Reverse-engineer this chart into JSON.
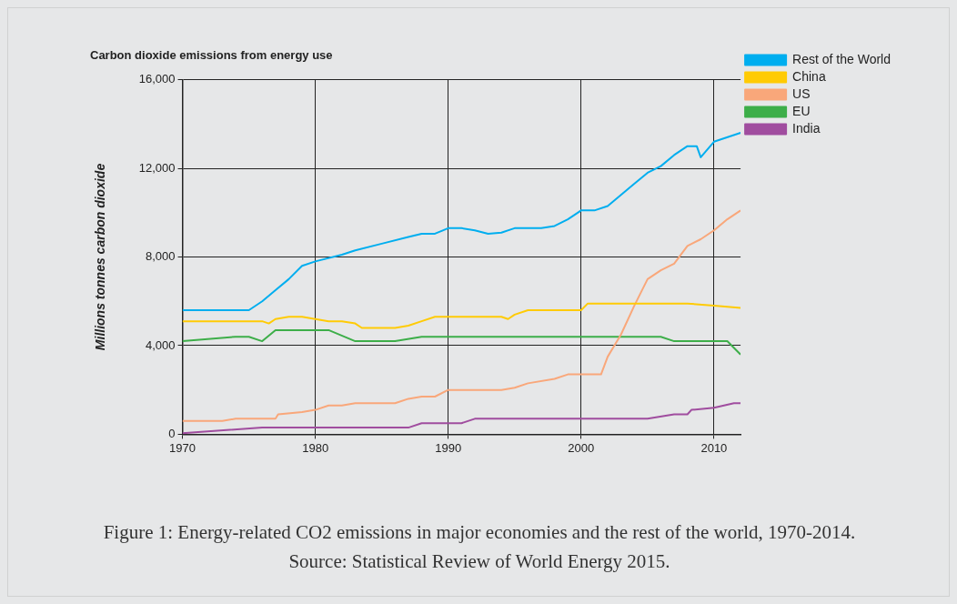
{
  "chart_data": {
    "type": "line",
    "title": "Carbon dioxide emissions from energy use",
    "ylabel": "Millions tonnes carbon dioxide",
    "annotations": [
      "Figure 1: Energy-related CO2 emissions in major economies and the rest of the world, 1970-2014.",
      "Source: Statistical Review of World Energy 2015."
    ],
    "xlim": [
      1970,
      2012
    ],
    "xticks": [
      1970,
      1980,
      1990,
      2000,
      2010
    ],
    "ylim": [
      0,
      16000
    ],
    "yticks": [
      0,
      {
        "value": 4000,
        "label": "4,000"
      },
      {
        "value": 8000,
        "label": "8,000"
      },
      {
        "value": 12000,
        "label": "12,000"
      },
      {
        "value": 16000,
        "label": "16,000"
      }
    ],
    "grid": true,
    "legend": "right",
    "marker": "none",
    "line_style": "solid",
    "series": [
      {
        "name": "Rest of the World",
        "color": "#00aeef",
        "x": [
          1970,
          1975,
          1976,
          1977,
          1978,
          1979,
          1980,
          1982,
          1983,
          1985,
          1987,
          1988,
          1989,
          1990,
          1991,
          1992,
          1993,
          1994,
          1995,
          1997,
          1998,
          1999,
          2000,
          2001,
          2002,
          2003,
          2004,
          2005,
          2006,
          2007,
          2008,
          2008.7,
          2009,
          2010,
          2012
        ],
        "values": [
          5600,
          5600,
          6000,
          6500,
          7000,
          7600,
          7800,
          8100,
          8300,
          8600,
          8900,
          9050,
          9050,
          9300,
          9300,
          9200,
          9050,
          9100,
          9300,
          9300,
          9400,
          9700,
          10100,
          10100,
          10300,
          10800,
          11300,
          11800,
          12100,
          12600,
          13000,
          13000,
          12500,
          13200,
          13600
        ]
      },
      {
        "name": "China",
        "color": "#ffcb05",
        "x": [
          1970,
          1976,
          1976.5,
          1977,
          1978,
          1979,
          1980,
          1981,
          1982,
          1983,
          1983.5,
          1986,
          1987,
          1988,
          1989,
          1994,
          1994.5,
          1995,
          1996,
          1998,
          2000,
          2000.5,
          2007,
          2008,
          2010,
          2012
        ],
        "values": [
          5100,
          5100,
          5000,
          5200,
          5300,
          5300,
          5200,
          5100,
          5100,
          5000,
          4800,
          4800,
          4900,
          5100,
          5300,
          5300,
          5200,
          5400,
          5600,
          5600,
          5600,
          5900,
          5900,
          5900,
          5800,
          5700
        ]
      },
      {
        "name": "US",
        "color": "#f9a77a",
        "x": [
          1970,
          1973,
          1974,
          1977,
          1977.2,
          1979,
          1980,
          1981,
          1982,
          1983,
          1986,
          1987,
          1988,
          1989,
          1990,
          1994,
          1995,
          1996,
          1998,
          1999,
          2001.5,
          2002,
          2003,
          2004,
          2005,
          2006,
          2007,
          2008,
          2009,
          2010,
          2011,
          2012
        ],
        "values": [
          600,
          600,
          700,
          700,
          900,
          1000,
          1100,
          1300,
          1300,
          1400,
          1400,
          1600,
          1700,
          1700,
          2000,
          2000,
          2100,
          2300,
          2500,
          2700,
          2700,
          3500,
          4500,
          5800,
          7000,
          7400,
          7700,
          8500,
          8800,
          9200,
          9700,
          10100
        ]
      },
      {
        "name": "EU",
        "color": "#3dae49",
        "x": [
          1970,
          1974,
          1975,
          1976,
          1977,
          1981,
          1983,
          1986,
          1988,
          2006,
          2007,
          2011,
          2012
        ],
        "values": [
          4200,
          4400,
          4400,
          4200,
          4700,
          4700,
          4200,
          4200,
          4400,
          4400,
          4200,
          4200,
          3600
        ]
      },
      {
        "name": "India",
        "color": "#a04d9f",
        "x": [
          1970,
          1976,
          1987,
          1988,
          1991,
          1992,
          2005,
          2007,
          2008,
          2008.3,
          2010,
          2011.5,
          2012
        ],
        "values": [
          50,
          300,
          300,
          500,
          500,
          700,
          700,
          900,
          900,
          1100,
          1200,
          1400,
          1400
        ]
      }
    ]
  }
}
